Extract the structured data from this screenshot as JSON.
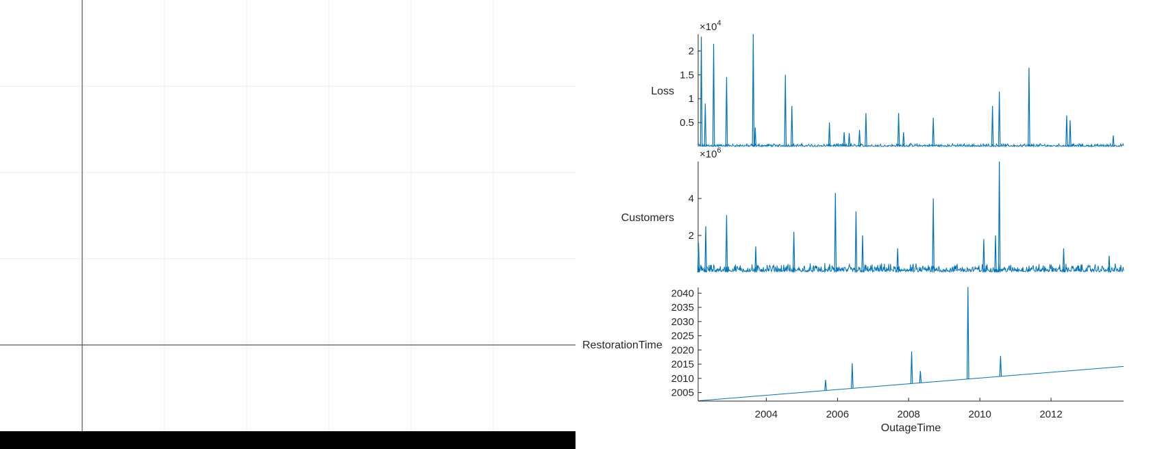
{
  "chart_data": {
    "type": "line",
    "layout": "stacked",
    "xlabel": "OutageTime",
    "x_ticks": [
      "2004",
      "2006",
      "2008",
      "2010",
      "2012"
    ],
    "xlim": [
      "2002-02-01",
      "2014-01-15"
    ],
    "color": "#0072BD",
    "panels": [
      {
        "ylabel": "Loss",
        "exponent_base": "×10",
        "exponent_power": "4",
        "y_ticks": [
          "0.5",
          "1",
          "1.5",
          "2"
        ],
        "ylim": [
          0,
          23500
        ],
        "spikes": [
          [
            "2002-03-05",
            23000
          ],
          [
            "2002-04-15",
            9000
          ],
          [
            "2002-07-10",
            21500
          ],
          [
            "2002-11-20",
            14500
          ],
          [
            "2003-08-20",
            23500
          ],
          [
            "2003-09-10",
            4000
          ],
          [
            "2004-07-15",
            15000
          ],
          [
            "2004-09-20",
            8500
          ],
          [
            "2005-10-10",
            5000
          ],
          [
            "2006-03-10",
            3000
          ],
          [
            "2006-05-01",
            2800
          ],
          [
            "2006-08-15",
            3500
          ],
          [
            "2006-10-20",
            7000
          ],
          [
            "2007-09-20",
            7000
          ],
          [
            "2007-11-10",
            3000
          ],
          [
            "2008-09-10",
            6000
          ],
          [
            "2010-05-10",
            8500
          ],
          [
            "2010-07-20",
            11500
          ],
          [
            "2011-05-20",
            16500
          ],
          [
            "2012-06-10",
            6500
          ],
          [
            "2012-07-15",
            5500
          ],
          [
            "2013-10-01",
            2300
          ]
        ]
      },
      {
        "ylabel": "Customers",
        "exponent_base": "×10",
        "exponent_power": "6",
        "y_ticks": [
          "2",
          "4"
        ],
        "ylim": [
          0,
          6000000
        ],
        "spikes": [
          [
            "2002-02-05",
            1600000
          ],
          [
            "2002-04-20",
            2500000
          ],
          [
            "2002-11-20",
            3100000
          ],
          [
            "2003-09-15",
            1400000
          ],
          [
            "2004-10-10",
            2200000
          ],
          [
            "2005-12-10",
            4300000
          ],
          [
            "2006-07-10",
            3300000
          ],
          [
            "2006-09-15",
            2000000
          ],
          [
            "2007-09-10",
            1300000
          ],
          [
            "2008-09-10",
            4000000
          ],
          [
            "2010-02-10",
            1800000
          ],
          [
            "2010-06-10",
            2000000
          ],
          [
            "2010-07-20",
            6000000
          ],
          [
            "2012-05-10",
            1300000
          ],
          [
            "2013-08-20",
            900000
          ]
        ]
      },
      {
        "ylabel": "RestorationTime",
        "y_ticks": [
          "2005",
          "2010",
          "2015",
          "2020",
          "2025",
          "2030",
          "2035",
          "2040"
        ],
        "ylim": [
          2002,
          2042
        ],
        "trend": [
          [
            "2002-02-01",
            2002.1
          ],
          [
            "2014-01-15",
            2014.2
          ]
        ],
        "spikes": [
          [
            "2005-09-01",
            2009.5
          ],
          [
            "2006-06-01",
            2015.3
          ],
          [
            "2008-02-01",
            2019.5
          ],
          [
            "2008-05-01",
            2012.6
          ],
          [
            "2009-09-01",
            2042.2
          ],
          [
            "2010-08-01",
            2017.9
          ]
        ]
      }
    ]
  }
}
